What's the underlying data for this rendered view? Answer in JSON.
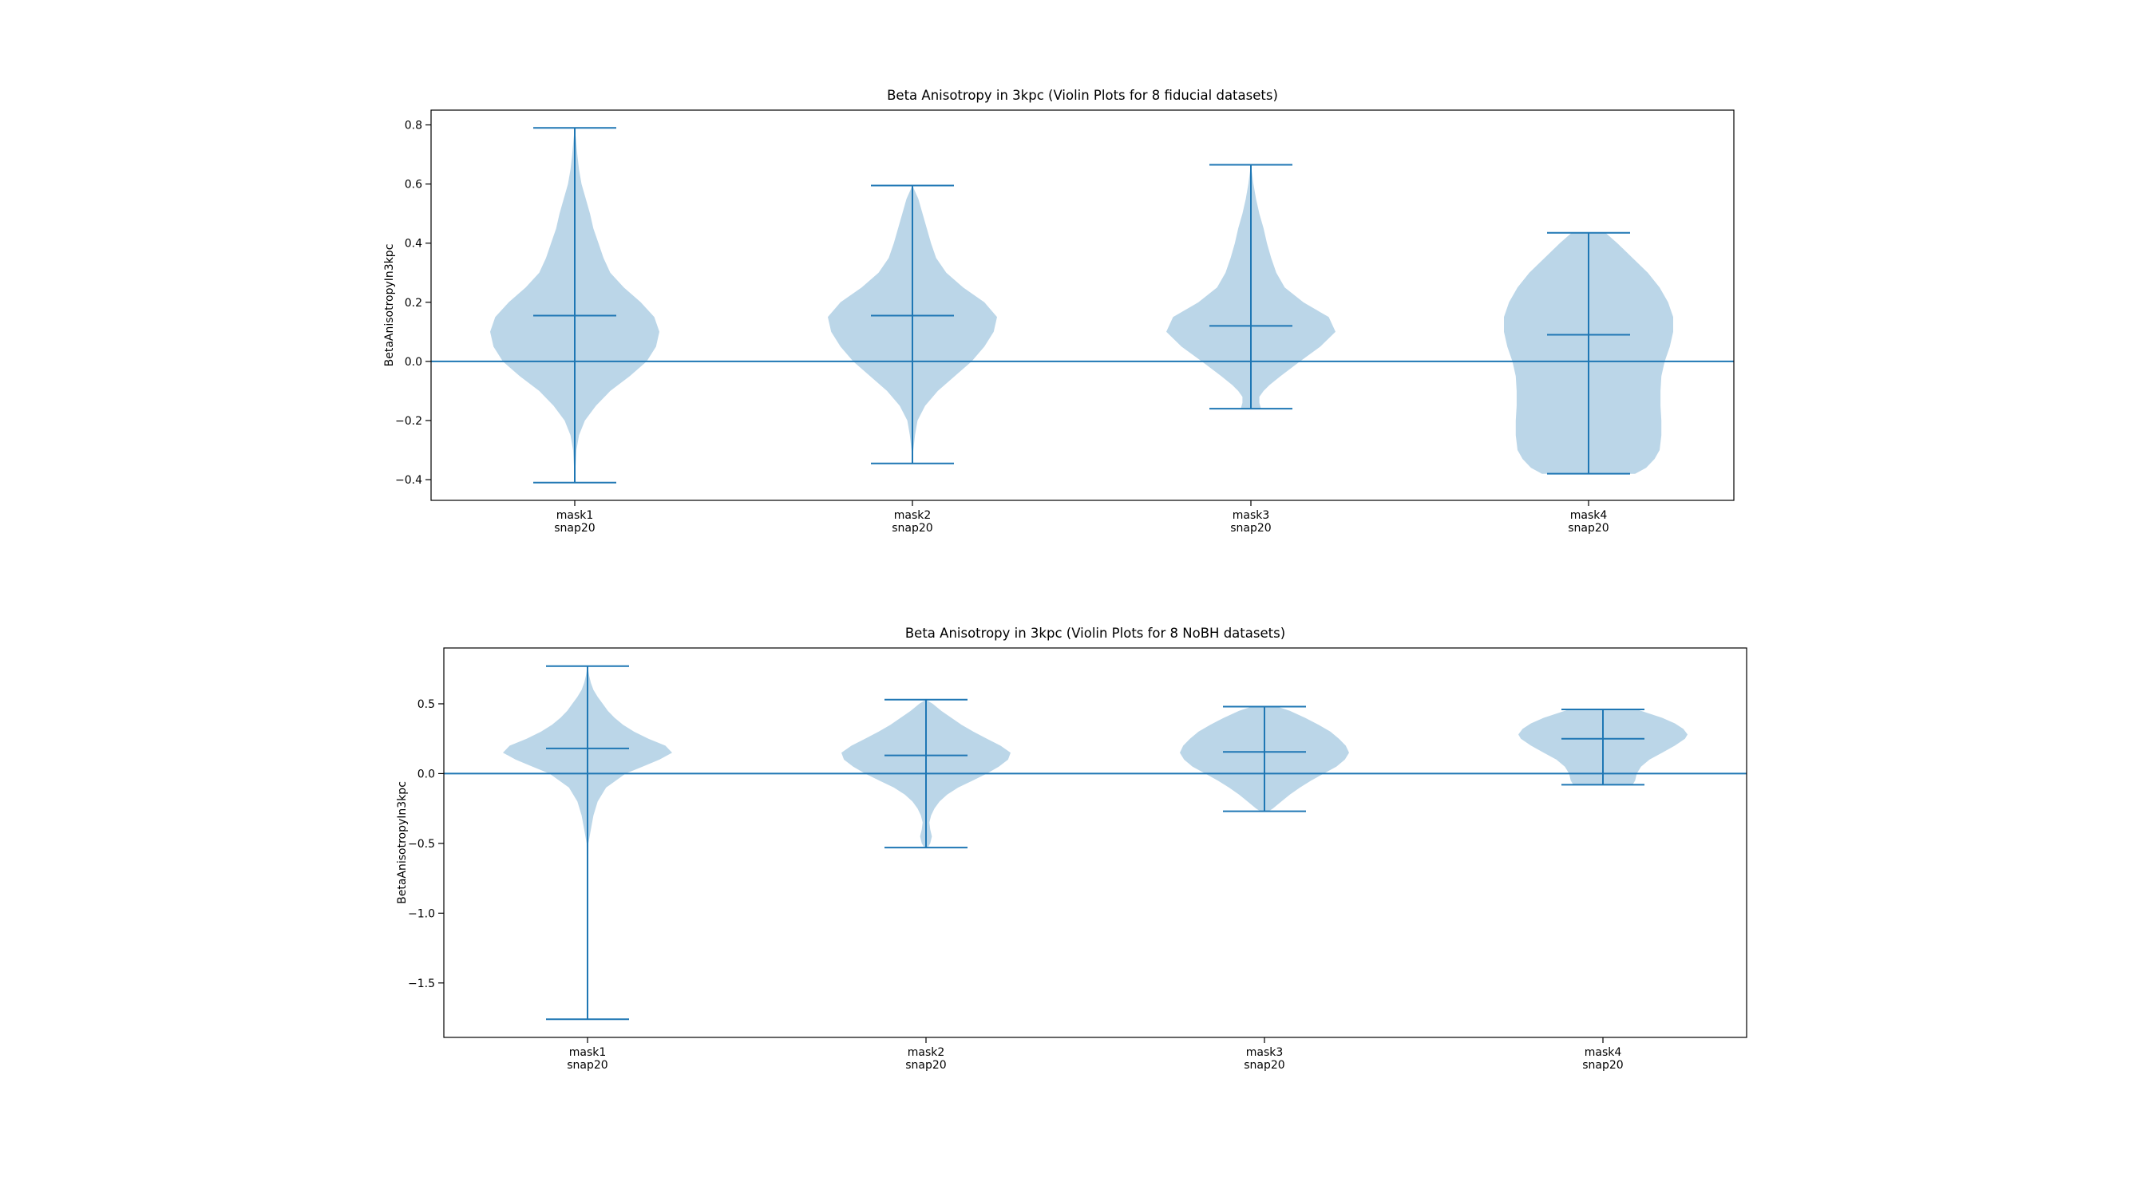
{
  "chart_data": [
    {
      "type": "violin",
      "title": "Beta Anisotropy in 3kpc (Violin Plots for 8 fiducial datasets)",
      "xlabel": "",
      "ylabel": "BetaAnisotropyIn3kpc",
      "categories": [
        [
          "mask1",
          "snap20"
        ],
        [
          "mask2",
          "snap20"
        ],
        [
          "mask3",
          "snap20"
        ],
        [
          "mask4",
          "snap20"
        ]
      ],
      "ylim": [
        -0.47,
        0.85
      ],
      "yticks": [
        -0.4,
        -0.2,
        0.0,
        0.2,
        0.4,
        0.6,
        0.8
      ],
      "ytick_labels": [
        "−0.4",
        "−0.2",
        "0.0",
        "0.2",
        "0.4",
        "0.6",
        "0.8"
      ],
      "reference_line_y": 0.0,
      "violins": [
        {
          "min": -0.41,
          "max": 0.79,
          "mean": 0.155,
          "profile": [
            [
              -0.41,
              0.0
            ],
            [
              -0.35,
              0.01
            ],
            [
              -0.3,
              0.02
            ],
            [
              -0.25,
              0.05
            ],
            [
              -0.2,
              0.12
            ],
            [
              -0.15,
              0.25
            ],
            [
              -0.1,
              0.42
            ],
            [
              -0.05,
              0.65
            ],
            [
              0.0,
              0.85
            ],
            [
              0.05,
              0.96
            ],
            [
              0.1,
              1.0
            ],
            [
              0.15,
              0.94
            ],
            [
              0.2,
              0.78
            ],
            [
              0.25,
              0.58
            ],
            [
              0.3,
              0.42
            ],
            [
              0.35,
              0.34
            ],
            [
              0.4,
              0.28
            ],
            [
              0.45,
              0.22
            ],
            [
              0.5,
              0.18
            ],
            [
              0.55,
              0.13
            ],
            [
              0.6,
              0.08
            ],
            [
              0.65,
              0.05
            ],
            [
              0.7,
              0.03
            ],
            [
              0.75,
              0.015
            ],
            [
              0.79,
              0.0
            ]
          ]
        },
        {
          "min": -0.345,
          "max": 0.595,
          "mean": 0.155,
          "profile": [
            [
              -0.345,
              0.0
            ],
            [
              -0.3,
              0.01
            ],
            [
              -0.25,
              0.03
            ],
            [
              -0.2,
              0.06
            ],
            [
              -0.15,
              0.15
            ],
            [
              -0.1,
              0.3
            ],
            [
              -0.05,
              0.5
            ],
            [
              0.0,
              0.7
            ],
            [
              0.05,
              0.85
            ],
            [
              0.1,
              0.96
            ],
            [
              0.15,
              1.0
            ],
            [
              0.2,
              0.85
            ],
            [
              0.25,
              0.6
            ],
            [
              0.3,
              0.4
            ],
            [
              0.35,
              0.28
            ],
            [
              0.4,
              0.22
            ],
            [
              0.45,
              0.17
            ],
            [
              0.5,
              0.12
            ],
            [
              0.55,
              0.07
            ],
            [
              0.595,
              0.0
            ]
          ]
        },
        {
          "min": -0.16,
          "max": 0.665,
          "mean": 0.12,
          "profile": [
            [
              -0.16,
              0.12
            ],
            [
              -0.14,
              0.1
            ],
            [
              -0.12,
              0.1
            ],
            [
              -0.1,
              0.15
            ],
            [
              -0.08,
              0.22
            ],
            [
              -0.05,
              0.35
            ],
            [
              0.0,
              0.58
            ],
            [
              0.05,
              0.82
            ],
            [
              0.1,
              1.0
            ],
            [
              0.15,
              0.92
            ],
            [
              0.2,
              0.62
            ],
            [
              0.25,
              0.4
            ],
            [
              0.3,
              0.3
            ],
            [
              0.35,
              0.24
            ],
            [
              0.4,
              0.19
            ],
            [
              0.45,
              0.15
            ],
            [
              0.5,
              0.1
            ],
            [
              0.55,
              0.06
            ],
            [
              0.6,
              0.03
            ],
            [
              0.665,
              0.0
            ]
          ]
        },
        {
          "min": -0.38,
          "max": 0.435,
          "mean": 0.09,
          "profile": [
            [
              -0.38,
              0.55
            ],
            [
              -0.36,
              0.68
            ],
            [
              -0.33,
              0.78
            ],
            [
              -0.3,
              0.84
            ],
            [
              -0.25,
              0.86
            ],
            [
              -0.2,
              0.86
            ],
            [
              -0.15,
              0.85
            ],
            [
              -0.1,
              0.85
            ],
            [
              -0.05,
              0.86
            ],
            [
              0.0,
              0.9
            ],
            [
              0.05,
              0.96
            ],
            [
              0.1,
              1.0
            ],
            [
              0.15,
              1.0
            ],
            [
              0.2,
              0.94
            ],
            [
              0.25,
              0.84
            ],
            [
              0.3,
              0.7
            ],
            [
              0.35,
              0.52
            ],
            [
              0.4,
              0.34
            ],
            [
              0.435,
              0.2
            ]
          ]
        }
      ]
    },
    {
      "type": "violin",
      "title": "Beta Anisotropy in 3kpc (Violin Plots for 8 NoBH datasets)",
      "xlabel": "",
      "ylabel": "BetaAnisotropyIn3kpc",
      "categories": [
        [
          "mask1",
          "snap20"
        ],
        [
          "mask2",
          "snap20"
        ],
        [
          "mask3",
          "snap20"
        ],
        [
          "mask4",
          "snap20"
        ]
      ],
      "ylim": [
        -1.89,
        0.9
      ],
      "yticks": [
        -1.5,
        -1.0,
        -0.5,
        0.0,
        0.5
      ],
      "ytick_labels": [
        "−1.5",
        "−1.0",
        "−0.5",
        "0.0",
        "0.5"
      ],
      "reference_line_y": 0.0,
      "violins": [
        {
          "min": -1.76,
          "max": 0.77,
          "mean": 0.18,
          "profile": [
            [
              -1.76,
              0.0
            ],
            [
              -1.0,
              0.005
            ],
            [
              -0.5,
              0.01
            ],
            [
              -0.4,
              0.04
            ],
            [
              -0.3,
              0.07
            ],
            [
              -0.2,
              0.12
            ],
            [
              -0.1,
              0.22
            ],
            [
              0.0,
              0.45
            ],
            [
              0.05,
              0.65
            ],
            [
              0.1,
              0.85
            ],
            [
              0.15,
              1.0
            ],
            [
              0.2,
              0.92
            ],
            [
              0.25,
              0.72
            ],
            [
              0.3,
              0.55
            ],
            [
              0.35,
              0.42
            ],
            [
              0.4,
              0.32
            ],
            [
              0.45,
              0.24
            ],
            [
              0.5,
              0.18
            ],
            [
              0.55,
              0.12
            ],
            [
              0.6,
              0.07
            ],
            [
              0.65,
              0.04
            ],
            [
              0.7,
              0.02
            ],
            [
              0.77,
              0.0
            ]
          ]
        },
        {
          "min": -0.53,
          "max": 0.53,
          "mean": 0.13,
          "profile": [
            [
              -0.53,
              0.02
            ],
            [
              -0.5,
              0.05
            ],
            [
              -0.45,
              0.07
            ],
            [
              -0.4,
              0.05
            ],
            [
              -0.35,
              0.04
            ],
            [
              -0.3,
              0.06
            ],
            [
              -0.25,
              0.1
            ],
            [
              -0.2,
              0.16
            ],
            [
              -0.15,
              0.25
            ],
            [
              -0.1,
              0.38
            ],
            [
              -0.05,
              0.55
            ],
            [
              0.0,
              0.72
            ],
            [
              0.05,
              0.86
            ],
            [
              0.1,
              0.97
            ],
            [
              0.15,
              1.0
            ],
            [
              0.2,
              0.88
            ],
            [
              0.25,
              0.72
            ],
            [
              0.3,
              0.56
            ],
            [
              0.35,
              0.42
            ],
            [
              0.4,
              0.3
            ],
            [
              0.45,
              0.18
            ],
            [
              0.5,
              0.08
            ],
            [
              0.53,
              0.0
            ]
          ]
        },
        {
          "min": -0.27,
          "max": 0.48,
          "mean": 0.155,
          "profile": [
            [
              -0.27,
              0.05
            ],
            [
              -0.25,
              0.1
            ],
            [
              -0.2,
              0.2
            ],
            [
              -0.15,
              0.3
            ],
            [
              -0.1,
              0.42
            ],
            [
              -0.05,
              0.55
            ],
            [
              0.0,
              0.7
            ],
            [
              0.05,
              0.85
            ],
            [
              0.1,
              0.95
            ],
            [
              0.15,
              1.0
            ],
            [
              0.2,
              0.96
            ],
            [
              0.25,
              0.88
            ],
            [
              0.3,
              0.78
            ],
            [
              0.35,
              0.64
            ],
            [
              0.4,
              0.48
            ],
            [
              0.45,
              0.3
            ],
            [
              0.48,
              0.15
            ]
          ]
        },
        {
          "min": -0.08,
          "max": 0.46,
          "mean": 0.25,
          "profile": [
            [
              -0.08,
              0.35
            ],
            [
              -0.05,
              0.38
            ],
            [
              0.0,
              0.4
            ],
            [
              0.05,
              0.45
            ],
            [
              0.1,
              0.55
            ],
            [
              0.15,
              0.7
            ],
            [
              0.2,
              0.85
            ],
            [
              0.25,
              0.97
            ],
            [
              0.28,
              1.0
            ],
            [
              0.32,
              0.95
            ],
            [
              0.36,
              0.85
            ],
            [
              0.4,
              0.7
            ],
            [
              0.43,
              0.55
            ],
            [
              0.46,
              0.4
            ]
          ]
        }
      ]
    }
  ]
}
